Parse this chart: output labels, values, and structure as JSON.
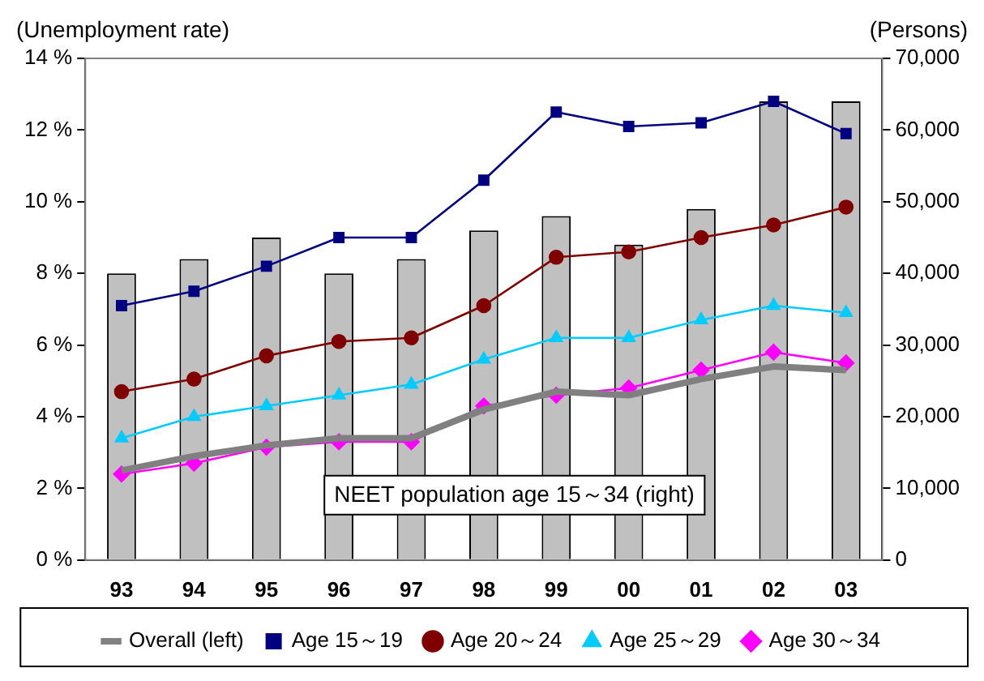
{
  "chart_data": {
    "type": "line",
    "xlabel": null,
    "ylabel": "(Unemployment rate)",
    "y2label": "(Persons)",
    "categories": [
      "93",
      "94",
      "95",
      "96",
      "97",
      "98",
      "99",
      "00",
      "01",
      "02",
      "03"
    ],
    "ylim": [
      0,
      14
    ],
    "yticks": [
      {
        "value": 0,
        "label": "0 %"
      },
      {
        "value": 2,
        "label": "2 %"
      },
      {
        "value": 4,
        "label": "4 %"
      },
      {
        "value": 6,
        "label": "6 %"
      },
      {
        "value": 8,
        "label": "8 %"
      },
      {
        "value": 10,
        "label": "10 %"
      },
      {
        "value": 12,
        "label": "12 %"
      },
      {
        "value": 14,
        "label": "14 %"
      }
    ],
    "y2lim": [
      0,
      70000
    ],
    "y2ticks": [
      0,
      {
        "value": 10000,
        "label": "10,000"
      },
      {
        "value": 20000,
        "label": "20,000"
      },
      {
        "value": 30000,
        "label": "30,000"
      },
      {
        "value": 40000,
        "label": "40,000"
      },
      {
        "value": 50000,
        "label": "50,000"
      },
      {
        "value": 60000,
        "label": "60,000"
      },
      {
        "value": 70000,
        "label": "70,000"
      }
    ],
    "grid": false,
    "legend": "bottom",
    "series": [
      {
        "name": "NEET population age 15～34 (right)",
        "type": "bar",
        "axis": "y2",
        "color": "#c0c0c0",
        "values": [
          40000,
          42000,
          45000,
          40000,
          42000,
          46000,
          48000,
          44000,
          49000,
          64000,
          64000
        ]
      },
      {
        "name": "Overall (left)",
        "color": "#808080",
        "marker": "none",
        "values": [
          2.5,
          2.9,
          3.2,
          3.4,
          3.4,
          4.2,
          4.7,
          4.6,
          5.05,
          5.4,
          5.3
        ]
      },
      {
        "name": "Age 15～19",
        "color": "#000080",
        "marker": "square",
        "values": [
          7.1,
          7.5,
          8.2,
          9.0,
          9.0,
          10.6,
          12.5,
          12.1,
          12.2,
          12.8,
          11.9
        ]
      },
      {
        "name": "Age 20～24",
        "color": "#800000",
        "marker": "circle",
        "values": [
          4.7,
          5.05,
          5.7,
          6.1,
          6.2,
          7.1,
          8.45,
          8.6,
          9.0,
          9.35,
          9.85
        ]
      },
      {
        "name": "Age 25～29",
        "color": "#00ccff",
        "marker": "triangle",
        "values": [
          3.4,
          4.0,
          4.3,
          4.6,
          4.9,
          5.6,
          6.2,
          6.2,
          6.7,
          7.1,
          6.9
        ]
      },
      {
        "name": "Age 30～34",
        "color": "#ff00ff",
        "marker": "diamond",
        "values": [
          2.4,
          2.7,
          3.15,
          3.3,
          3.3,
          4.3,
          4.6,
          4.8,
          5.3,
          5.8,
          5.5
        ]
      }
    ]
  }
}
